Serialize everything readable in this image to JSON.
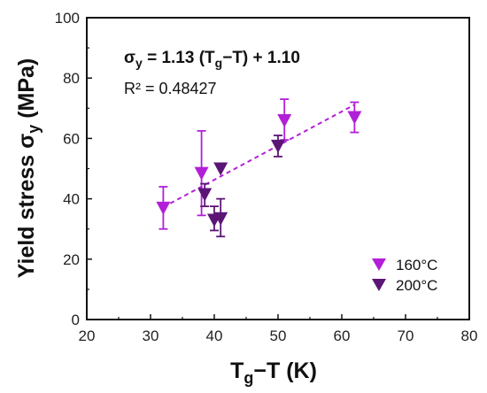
{
  "chart_data": {
    "type": "scatter",
    "xlabel": {
      "main": "T",
      "sub": "g",
      "rest": "−T (K)"
    },
    "ylabel": {
      "main": "Yield stress σ",
      "sub": "y",
      "rest": " (MPa)"
    },
    "xlim": [
      20,
      80
    ],
    "ylim": [
      0,
      100
    ],
    "xticks": [
      20,
      30,
      40,
      50,
      60,
      70,
      80
    ],
    "yticks": [
      0,
      20,
      40,
      60,
      80,
      100
    ],
    "grid": false,
    "legend_position": "bottom-right",
    "series": [
      {
        "name": "160°C",
        "color": "#b21fd8",
        "marker": "triangle-down",
        "points": [
          {
            "x": 32,
            "y": 37,
            "err_low": 7,
            "err_high": 7
          },
          {
            "x": 38,
            "y": 48.5,
            "err_low": 14,
            "err_high": 14
          },
          {
            "x": 51,
            "y": 66,
            "err_low": 6.5,
            "err_high": 7
          },
          {
            "x": 62,
            "y": 67,
            "err_low": 5,
            "err_high": 5
          }
        ]
      },
      {
        "name": "200°C",
        "color": "#5b1575",
        "marker": "triangle-down",
        "points": [
          {
            "x": 38.5,
            "y": 41.5,
            "err_low": 4,
            "err_high": 3.5
          },
          {
            "x": 40,
            "y": 33,
            "err_low": 3.5,
            "err_high": 4.5
          },
          {
            "x": 41,
            "y": 33.5,
            "err_low": 6,
            "err_high": 6.5
          },
          {
            "x": 41,
            "y": 50,
            "err_low": 0,
            "err_high": 0
          },
          {
            "x": 50,
            "y": 57.5,
            "err_low": 3.5,
            "err_high": 3.5
          }
        ]
      }
    ],
    "fit": {
      "slope": 1.13,
      "intercept": 1.1,
      "x_range": [
        32,
        62
      ],
      "color": "#b21fd8",
      "style": "dashed"
    },
    "annotations": {
      "equation": {
        "sigma": "σ",
        "sigma_sub": "y",
        "mid": " = 1.13 (T",
        "t_sub": "g",
        "end": "−T) + 1.10"
      },
      "r2": "R² = 0.48427"
    }
  }
}
